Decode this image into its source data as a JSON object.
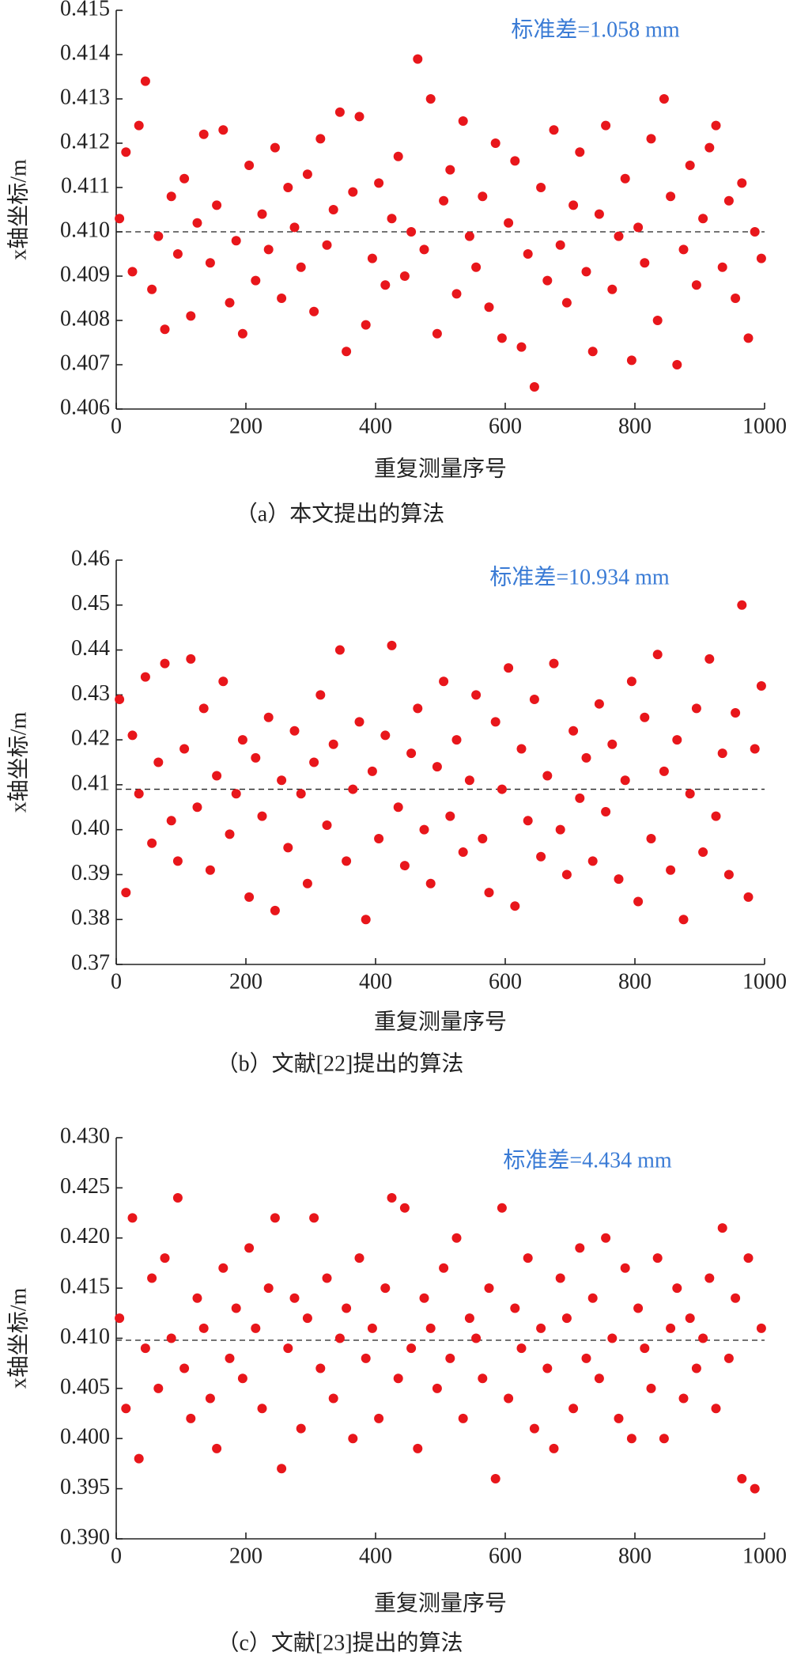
{
  "chart_data": [
    {
      "type": "scatter",
      "annotation": "标准差=1.058 mm",
      "xlabel": "重复测量序号",
      "ylabel": "x轴坐标/m",
      "caption": "（a）本文提出的算法",
      "color": "#e8161b",
      "reference_line": {
        "value": 0.41,
        "color": "#222"
      },
      "xlim": [
        0,
        1000
      ],
      "xticks": [
        0,
        200,
        400,
        600,
        800,
        1000
      ],
      "ylim": [
        0.406,
        0.415
      ],
      "yticks": [
        0.406,
        0.407,
        0.408,
        0.409,
        {
          "value": 0.41,
          "label": "0.410"
        },
        0.411,
        0.412,
        0.413,
        0.414,
        0.415
      ],
      "x": [
        5,
        15,
        25,
        35,
        45,
        55,
        65,
        75,
        85,
        95,
        105,
        115,
        125,
        135,
        145,
        155,
        165,
        175,
        185,
        195,
        205,
        215,
        225,
        235,
        245,
        255,
        265,
        275,
        285,
        295,
        305,
        315,
        325,
        335,
        345,
        355,
        365,
        375,
        385,
        395,
        405,
        415,
        425,
        435,
        445,
        455,
        465,
        475,
        485,
        495,
        505,
        515,
        525,
        535,
        545,
        555,
        565,
        575,
        585,
        595,
        605,
        615,
        625,
        635,
        645,
        655,
        665,
        675,
        685,
        695,
        705,
        715,
        725,
        735,
        745,
        755,
        765,
        775,
        785,
        795,
        805,
        815,
        825,
        835,
        845,
        855,
        865,
        875,
        885,
        895,
        905,
        915,
        925,
        935,
        945,
        955,
        965,
        975,
        985,
        995
      ],
      "values": [
        0.4103,
        0.4118,
        0.4091,
        0.4124,
        0.4134,
        0.4087,
        0.4099,
        0.4078,
        0.4108,
        0.4095,
        0.4112,
        0.4081,
        0.4102,
        0.4122,
        0.4093,
        0.4106,
        0.4123,
        0.4084,
        0.4098,
        0.4077,
        0.4115,
        0.4089,
        0.4104,
        0.4096,
        0.4119,
        0.4085,
        0.411,
        0.4101,
        0.4092,
        0.4113,
        0.4082,
        0.4121,
        0.4097,
        0.4105,
        0.4127,
        0.4073,
        0.4109,
        0.4126,
        0.4079,
        0.4094,
        0.4111,
        0.4088,
        0.4103,
        0.4117,
        0.409,
        0.41,
        0.4139,
        0.4096,
        0.413,
        0.4077,
        0.4107,
        0.4114,
        0.4086,
        0.4125,
        0.4099,
        0.4092,
        0.4108,
        0.4083,
        0.412,
        0.4076,
        0.4102,
        0.4116,
        0.4074,
        0.4095,
        0.4065,
        0.411,
        0.4089,
        0.4123,
        0.4097,
        0.4084,
        0.4106,
        0.4118,
        0.4091,
        0.4073,
        0.4104,
        0.4124,
        0.4087,
        0.4099,
        0.4112,
        0.4071,
        0.4101,
        0.4093,
        0.4121,
        0.408,
        0.413,
        0.4108,
        0.407,
        0.4096,
        0.4115,
        0.4088,
        0.4103,
        0.4119,
        0.4124,
        0.4092,
        0.4107,
        0.4085,
        0.4111,
        0.4076,
        0.41,
        0.4094
      ]
    },
    {
      "type": "scatter",
      "annotation": "标准差=10.934 mm",
      "xlabel": "重复测量序号",
      "ylabel": "x轴坐标/m",
      "caption": "（b）文献[22]提出的算法",
      "color": "#e8161b",
      "reference_line": {
        "value": 0.409,
        "color": "#222"
      },
      "xlim": [
        0,
        1000
      ],
      "xticks": [
        0,
        200,
        400,
        600,
        800,
        1000
      ],
      "ylim": [
        0.37,
        0.46
      ],
      "yticks": [
        0.37,
        0.38,
        0.39,
        {
          "value": 0.4,
          "label": "0.40"
        },
        0.41,
        0.42,
        0.43,
        0.44,
        0.45,
        0.46
      ],
      "x": [
        5,
        15,
        25,
        35,
        45,
        55,
        65,
        75,
        85,
        95,
        105,
        115,
        125,
        135,
        145,
        155,
        165,
        175,
        185,
        195,
        205,
        215,
        225,
        235,
        245,
        255,
        265,
        275,
        285,
        295,
        305,
        315,
        325,
        335,
        345,
        355,
        365,
        375,
        385,
        395,
        405,
        415,
        425,
        435,
        445,
        455,
        465,
        475,
        485,
        495,
        505,
        515,
        525,
        535,
        545,
        555,
        565,
        575,
        585,
        595,
        605,
        615,
        625,
        635,
        645,
        655,
        665,
        675,
        685,
        695,
        705,
        715,
        725,
        735,
        745,
        755,
        765,
        775,
        785,
        795,
        805,
        815,
        825,
        835,
        845,
        855,
        865,
        875,
        885,
        895,
        905,
        915,
        925,
        935,
        945,
        955,
        965,
        975,
        985,
        995
      ],
      "values": [
        0.429,
        0.386,
        0.421,
        0.408,
        0.434,
        0.397,
        0.415,
        0.437,
        0.402,
        0.393,
        0.418,
        0.438,
        0.405,
        0.427,
        0.391,
        0.412,
        0.433,
        0.399,
        0.408,
        0.42,
        0.385,
        0.416,
        0.403,
        0.425,
        0.382,
        0.411,
        0.396,
        0.422,
        0.408,
        0.388,
        0.415,
        0.43,
        0.401,
        0.419,
        0.44,
        0.393,
        0.409,
        0.424,
        0.38,
        0.413,
        0.398,
        0.421,
        0.441,
        0.405,
        0.392,
        0.417,
        0.427,
        0.4,
        0.388,
        0.414,
        0.433,
        0.403,
        0.42,
        0.395,
        0.411,
        0.43,
        0.398,
        0.386,
        0.424,
        0.409,
        0.436,
        0.383,
        0.418,
        0.402,
        0.429,
        0.394,
        0.412,
        0.437,
        0.4,
        0.39,
        0.422,
        0.407,
        0.416,
        0.393,
        0.428,
        0.404,
        0.419,
        0.389,
        0.411,
        0.433,
        0.384,
        0.425,
        0.398,
        0.439,
        0.413,
        0.391,
        0.42,
        0.38,
        0.408,
        0.427,
        0.395,
        0.438,
        0.403,
        0.417,
        0.39,
        0.426,
        0.45,
        0.385,
        0.418,
        0.432
      ]
    },
    {
      "type": "scatter",
      "annotation": "标准差=4.434 mm",
      "xlabel": "重复测量序号",
      "ylabel": "x轴坐标/m",
      "caption": "（c）文献[23]提出的算法",
      "color": "#e8161b",
      "reference_line": {
        "value": 0.4098,
        "color": "#222"
      },
      "xlim": [
        0,
        1000
      ],
      "xticks": [
        0,
        200,
        400,
        600,
        800,
        1000
      ],
      "ylim": [
        0.39,
        0.43
      ],
      "yticks": [
        {
          "value": 0.39,
          "label": "0.390"
        },
        0.395,
        {
          "value": 0.4,
          "label": "0.400"
        },
        0.405,
        {
          "value": 0.41,
          "label": "0.410"
        },
        0.415,
        {
          "value": 0.42,
          "label": "0.420"
        },
        0.425,
        {
          "value": 0.43,
          "label": "0.430"
        }
      ],
      "x": [
        5,
        15,
        25,
        35,
        45,
        55,
        65,
        75,
        85,
        95,
        105,
        115,
        125,
        135,
        145,
        155,
        165,
        175,
        185,
        195,
        205,
        215,
        225,
        235,
        245,
        255,
        265,
        275,
        285,
        295,
        305,
        315,
        325,
        335,
        345,
        355,
        365,
        375,
        385,
        395,
        405,
        415,
        425,
        435,
        445,
        455,
        465,
        475,
        485,
        495,
        505,
        515,
        525,
        535,
        545,
        555,
        565,
        575,
        585,
        595,
        605,
        615,
        625,
        635,
        645,
        655,
        665,
        675,
        685,
        695,
        705,
        715,
        725,
        735,
        745,
        755,
        765,
        775,
        785,
        795,
        805,
        815,
        825,
        835,
        845,
        855,
        865,
        875,
        885,
        895,
        905,
        915,
        925,
        935,
        945,
        955,
        965,
        975,
        985,
        995
      ],
      "values": [
        0.412,
        0.403,
        0.422,
        0.398,
        0.409,
        0.416,
        0.405,
        0.418,
        0.41,
        0.424,
        0.407,
        0.402,
        0.414,
        0.411,
        0.404,
        0.399,
        0.417,
        0.408,
        0.413,
        0.406,
        0.419,
        0.411,
        0.403,
        0.415,
        0.422,
        0.397,
        0.409,
        0.414,
        0.401,
        0.412,
        0.422,
        0.407,
        0.416,
        0.404,
        0.41,
        0.413,
        0.4,
        0.418,
        0.408,
        0.411,
        0.402,
        0.415,
        0.424,
        0.406,
        0.423,
        0.409,
        0.399,
        0.414,
        0.411,
        0.405,
        0.417,
        0.408,
        0.42,
        0.402,
        0.412,
        0.41,
        0.406,
        0.415,
        0.396,
        0.423,
        0.404,
        0.413,
        0.409,
        0.418,
        0.401,
        0.411,
        0.407,
        0.399,
        0.416,
        0.412,
        0.403,
        0.419,
        0.408,
        0.414,
        0.406,
        0.42,
        0.41,
        0.402,
        0.417,
        0.4,
        0.413,
        0.409,
        0.405,
        0.418,
        0.4,
        0.411,
        0.415,
        0.404,
        0.412,
        0.407,
        0.41,
        0.416,
        0.403,
        0.421,
        0.408,
        0.414,
        0.396,
        0.418,
        0.395,
        0.411
      ]
    }
  ]
}
